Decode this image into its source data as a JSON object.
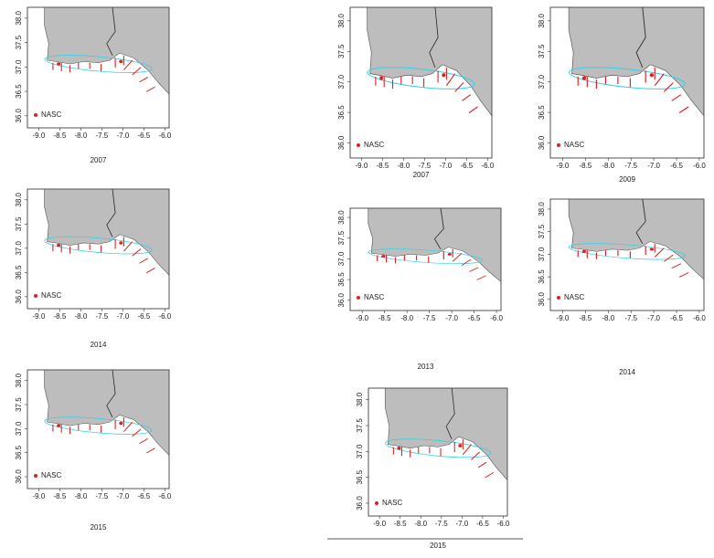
{
  "panels": [
    {
      "caption": "2007",
      "legend": "NASC",
      "xticks": [
        "-9.0",
        "-8.5",
        "-8.0",
        "-7.5",
        "-7.0",
        "-6.5",
        "-6.0"
      ],
      "yticks": [
        "36.0",
        "36.5",
        "37.0",
        "37.5",
        "38.0"
      ]
    },
    {
      "caption": "2014",
      "legend": "NASC",
      "xticks": [
        "-9.0",
        "-8.5",
        "-8.0",
        "-7.5",
        "-7.0",
        "-6.5",
        "-6.0"
      ],
      "yticks": [
        "36.0",
        "36.5",
        "37.0",
        "37.5",
        "38.0"
      ]
    },
    {
      "caption": "2015",
      "legend": "NASC",
      "xticks": [
        "-9.0",
        "-8.5",
        "-8.0",
        "-7.5",
        "-7.0",
        "-6.5",
        "-6.0"
      ],
      "yticks": [
        "36.0",
        "36.5",
        "37.0",
        "37.5",
        "38.0"
      ]
    },
    {
      "caption": "2007",
      "legend": "NASC",
      "xticks": [
        "-9.0",
        "-8.5",
        "-8.0",
        "-7.5",
        "-7.0",
        "-6.5",
        "-6.0"
      ],
      "yticks": [
        "36.0",
        "36.5",
        "37.0",
        "37.5",
        "38.0"
      ]
    },
    {
      "caption": "2009",
      "legend": "NASC",
      "xticks": [
        "-9.0",
        "-8.5",
        "-8.0",
        "-7.5",
        "-7.0",
        "-6.5",
        "-6.0"
      ],
      "yticks": [
        "36.0",
        "36.5",
        "37.0",
        "37.5",
        "38.0"
      ]
    },
    {
      "caption": "2013",
      "legend": "NASC",
      "xticks": [
        "-9.0",
        "-8.5",
        "-8.0",
        "-7.5",
        "-7.0",
        "-6.5",
        "-6.0"
      ],
      "yticks": [
        "36.0",
        "36.5",
        "37.0",
        "37.5",
        "38.0"
      ]
    },
    {
      "caption": "2014",
      "legend": "NASC",
      "xticks": [
        "-9.0",
        "-8.5",
        "-8.0",
        "-7.5",
        "-7.0",
        "-6.5",
        "-6.0"
      ],
      "yticks": [
        "36.0",
        "36.5",
        "37.0",
        "37.5",
        "38.0"
      ]
    },
    {
      "caption": "2015",
      "legend": "NASC",
      "xticks": [
        "-9.0",
        "-8.5",
        "-8.0",
        "-7.5",
        "-7.0",
        "-6.5",
        "-6.0"
      ],
      "yticks": [
        "36.0",
        "36.5",
        "37.0",
        "37.5",
        "38.0"
      ]
    }
  ]
}
